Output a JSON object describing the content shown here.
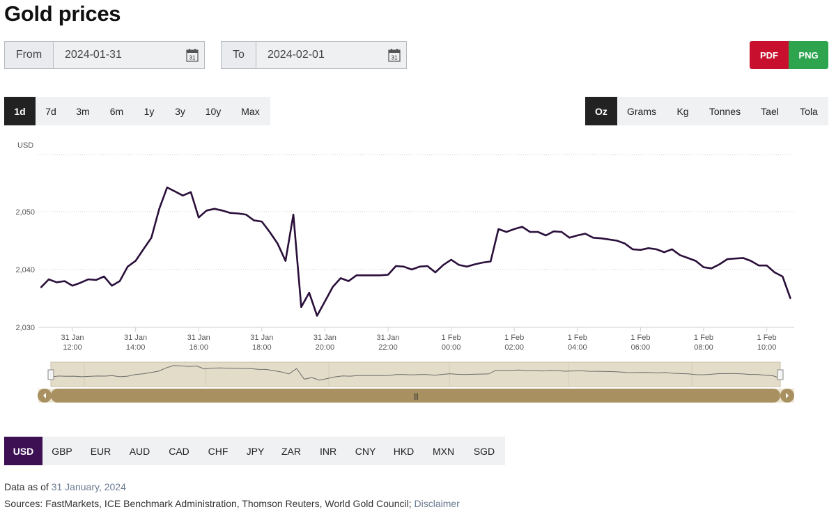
{
  "title": "Gold prices",
  "date_range": {
    "from_label": "From",
    "from_value": "2024-01-31",
    "to_label": "To",
    "to_value": "2024-02-01",
    "calendar_icon": "calendar-icon",
    "calendar_day": "31"
  },
  "export": {
    "pdf_label": "PDF",
    "png_label": "PNG",
    "pdf_color": "#c8102e",
    "png_color": "#2ea44f"
  },
  "periods": [
    "1d",
    "7d",
    "3m",
    "6m",
    "1y",
    "3y",
    "10y",
    "Max"
  ],
  "active_period": "1d",
  "units": [
    "Oz",
    "Grams",
    "Kg",
    "Tonnes",
    "Tael",
    "Tola"
  ],
  "active_unit": "Oz",
  "currencies": [
    "USD",
    "GBP",
    "EUR",
    "AUD",
    "CAD",
    "CHF",
    "JPY",
    "ZAR",
    "INR",
    "CNY",
    "HKD",
    "MXN",
    "SGD"
  ],
  "active_currency": "USD",
  "footer": {
    "data_as_of_label": "Data as of",
    "data_as_of_value": "31 January, 2024",
    "sources_label": "Sources: FastMarkets, ICE Benchmark Administration, Thomson Reuters, World Gold Council;",
    "disclaimer_label": "Disclaimer"
  },
  "colors": {
    "series": "#2a0f3a",
    "active_currency_bg": "#3c1053",
    "active_toggle_bg": "#222222",
    "navigator_handle": "#a89060",
    "navigator_fill": "#e3dcc8"
  },
  "chart_data": {
    "type": "line",
    "ylabel": "USD",
    "ylim": [
      2030,
      2055
    ],
    "y_ticks": [
      "2,030",
      "2,040",
      "2,050"
    ],
    "y_tick_values": [
      2030,
      2040,
      2050
    ],
    "x_ticks": [
      {
        "t": "2024-01-31T12:00",
        "day": "31 Jan",
        "time": "12:00"
      },
      {
        "t": "2024-01-31T14:00",
        "day": "31 Jan",
        "time": "14:00"
      },
      {
        "t": "2024-01-31T16:00",
        "day": "31 Jan",
        "time": "16:00"
      },
      {
        "t": "2024-01-31T18:00",
        "day": "31 Jan",
        "time": "18:00"
      },
      {
        "t": "2024-01-31T20:00",
        "day": "31 Jan",
        "time": "20:00"
      },
      {
        "t": "2024-01-31T22:00",
        "day": "31 Jan",
        "time": "22:00"
      },
      {
        "t": "2024-02-01T00:00",
        "day": "1 Feb",
        "time": "00:00"
      },
      {
        "t": "2024-02-01T02:00",
        "day": "1 Feb",
        "time": "02:00"
      },
      {
        "t": "2024-02-01T04:00",
        "day": "1 Feb",
        "time": "04:00"
      },
      {
        "t": "2024-02-01T06:00",
        "day": "1 Feb",
        "time": "06:00"
      },
      {
        "t": "2024-02-01T08:00",
        "day": "1 Feb",
        "time": "08:00"
      },
      {
        "t": "2024-02-01T10:00",
        "day": "1 Feb",
        "time": "10:00"
      }
    ],
    "x": [
      "2024-01-31T11:00",
      "2024-01-31T11:15",
      "2024-01-31T11:30",
      "2024-01-31T11:45",
      "2024-01-31T12:00",
      "2024-01-31T12:15",
      "2024-01-31T12:30",
      "2024-01-31T12:45",
      "2024-01-31T13:00",
      "2024-01-31T13:15",
      "2024-01-31T13:30",
      "2024-01-31T13:45",
      "2024-01-31T14:00",
      "2024-01-31T14:15",
      "2024-01-31T14:30",
      "2024-01-31T14:45",
      "2024-01-31T15:00",
      "2024-01-31T15:15",
      "2024-01-31T15:30",
      "2024-01-31T15:45",
      "2024-01-31T16:00",
      "2024-01-31T16:15",
      "2024-01-31T16:30",
      "2024-01-31T16:45",
      "2024-01-31T17:00",
      "2024-01-31T17:15",
      "2024-01-31T17:30",
      "2024-01-31T17:45",
      "2024-01-31T18:00",
      "2024-01-31T18:15",
      "2024-01-31T18:30",
      "2024-01-31T18:45",
      "2024-01-31T19:00",
      "2024-01-31T19:15",
      "2024-01-31T19:30",
      "2024-01-31T19:45",
      "2024-01-31T20:00",
      "2024-01-31T20:15",
      "2024-01-31T20:30",
      "2024-01-31T20:45",
      "2024-01-31T21:00",
      "2024-01-31T21:15",
      "2024-01-31T21:30",
      "2024-01-31T21:45",
      "2024-01-31T22:00",
      "2024-01-31T22:15",
      "2024-01-31T22:30",
      "2024-01-31T22:45",
      "2024-01-31T23:00",
      "2024-01-31T23:15",
      "2024-01-31T23:30",
      "2024-01-31T23:45",
      "2024-02-01T00:00",
      "2024-02-01T00:15",
      "2024-02-01T00:30",
      "2024-02-01T00:45",
      "2024-02-01T01:00",
      "2024-02-01T01:15",
      "2024-02-01T01:30",
      "2024-02-01T01:45",
      "2024-02-01T02:00",
      "2024-02-01T02:15",
      "2024-02-01T02:30",
      "2024-02-01T02:45",
      "2024-02-01T03:00",
      "2024-02-01T03:15",
      "2024-02-01T03:30",
      "2024-02-01T03:45",
      "2024-02-01T04:00",
      "2024-02-01T04:15",
      "2024-02-01T04:30",
      "2024-02-01T04:45",
      "2024-02-01T05:00",
      "2024-02-01T05:15",
      "2024-02-01T05:30",
      "2024-02-01T05:45",
      "2024-02-01T06:00",
      "2024-02-01T06:15",
      "2024-02-01T06:30",
      "2024-02-01T06:45",
      "2024-02-01T07:00",
      "2024-02-01T07:15",
      "2024-02-01T07:30",
      "2024-02-01T07:45",
      "2024-02-01T08:00",
      "2024-02-01T08:15",
      "2024-02-01T08:30",
      "2024-02-01T08:45",
      "2024-02-01T09:00",
      "2024-02-01T09:15",
      "2024-02-01T09:30",
      "2024-02-01T09:45",
      "2024-02-01T10:00",
      "2024-02-01T10:15",
      "2024-02-01T10:30",
      "2024-02-01T10:45"
    ],
    "series": [
      {
        "values": [
          2036.9,
          2038.3,
          2037.8,
          2038.0,
          2037.2,
          2037.7,
          2038.3,
          2038.2,
          2038.8,
          2037.2,
          2038.0,
          2040.5,
          2041.5,
          2043.5,
          2045.5,
          2050.5,
          2054.2,
          2053.5,
          2052.8,
          2053.4,
          2049.0,
          2050.2,
          2050.5,
          2050.2,
          2049.8,
          2049.7,
          2049.5,
          2048.5,
          2048.3,
          2046.5,
          2044.5,
          2041.5,
          2049.5,
          2033.5,
          2036.0,
          2032.0,
          2034.5,
          2037.0,
          2038.5,
          2038.0,
          2039.0,
          2039.0,
          2039.0,
          2039.0,
          2039.1,
          2040.6,
          2040.5,
          2040.0,
          2040.5,
          2040.6,
          2039.5,
          2040.8,
          2041.7,
          2040.8,
          2040.5,
          2040.9,
          2041.2,
          2041.4,
          2047.0,
          2046.5,
          2047.0,
          2047.4,
          2046.5,
          2046.5,
          2045.9,
          2046.6,
          2046.5,
          2045.5,
          2045.9,
          2046.2,
          2045.5,
          2045.4,
          2045.2,
          2045.0,
          2044.5,
          2043.5,
          2043.4,
          2043.7,
          2043.5,
          2043.0,
          2043.5,
          2042.5,
          2042.0,
          2041.5,
          2040.4,
          2040.2,
          2040.9,
          2041.8,
          2041.9,
          2042.0,
          2041.5,
          2040.7,
          2040.7,
          2039.5,
          2038.8,
          2035.0
        ]
      }
    ],
    "navigator": {
      "handle_icon": "grip-icon",
      "left_arrow": "chevron-left-icon",
      "right_arrow": "chevron-right-icon"
    },
    "grid": true,
    "legend": "none"
  }
}
